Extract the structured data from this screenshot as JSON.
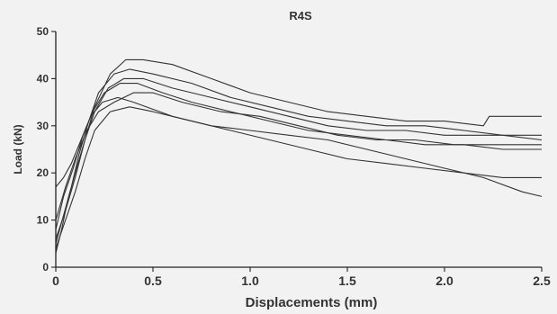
{
  "chart_data": {
    "type": "line",
    "title": "R4S",
    "xlabel": "Displacements (mm)",
    "ylabel": "Load (kN)",
    "xlim": [
      0,
      2.5
    ],
    "ylim": [
      0,
      50
    ],
    "xticks": [
      0,
      0.5,
      1.0,
      1.5,
      2.0,
      2.5
    ],
    "xtick_labels": [
      "0",
      "0.5",
      "1.0",
      "1.5",
      "2.0",
      "2.5"
    ],
    "yticks": [
      0,
      10,
      20,
      30,
      40,
      50
    ],
    "ytick_labels": [
      "0",
      "10",
      "20",
      "30",
      "40",
      "50"
    ],
    "grid": false,
    "series": [
      {
        "x": [
          0,
          0.03,
          0.06,
          0.1,
          0.15,
          0.2,
          0.28,
          0.36,
          0.45,
          0.6,
          0.8,
          1.0,
          1.2,
          1.4,
          1.6,
          1.8,
          2.0,
          2.2,
          2.23,
          2.5
        ],
        "y": [
          3,
          8,
          14,
          20,
          27,
          34,
          41,
          44,
          44,
          43,
          40,
          37,
          35,
          33,
          32,
          31,
          31,
          30,
          32,
          32
        ]
      },
      {
        "x": [
          0,
          0.04,
          0.08,
          0.12,
          0.17,
          0.22,
          0.3,
          0.38,
          0.5,
          0.7,
          0.9,
          1.1,
          1.3,
          1.5,
          1.7,
          1.9,
          2.1,
          2.3,
          2.5
        ],
        "y": [
          5,
          11,
          17,
          24,
          31,
          37,
          41,
          42,
          41,
          39,
          36,
          34,
          32,
          31,
          30,
          30,
          29,
          28,
          27
        ]
      },
      {
        "x": [
          0,
          0.05,
          0.1,
          0.15,
          0.2,
          0.27,
          0.35,
          0.45,
          0.6,
          0.8,
          1.0,
          1.2,
          1.4,
          1.6,
          1.8,
          2.0,
          2.2,
          2.4,
          2.5
        ],
        "y": [
          6,
          12,
          19,
          27,
          33,
          38,
          40,
          40,
          38,
          36,
          34,
          32,
          30,
          29,
          29,
          28,
          28,
          28,
          28
        ]
      },
      {
        "x": [
          0,
          0.04,
          0.09,
          0.14,
          0.19,
          0.25,
          0.33,
          0.42,
          0.55,
          0.7,
          0.9,
          1.1,
          1.3,
          1.5,
          1.7,
          1.9,
          2.1,
          2.3,
          2.5
        ],
        "y": [
          8,
          15,
          21,
          28,
          33,
          37,
          39,
          39,
          37,
          35,
          33,
          31,
          29,
          28,
          27,
          26,
          26,
          25,
          25
        ]
      },
      {
        "x": [
          0,
          0.05,
          0.1,
          0.16,
          0.22,
          0.3,
          0.4,
          0.5,
          0.65,
          0.85,
          1.05,
          1.25,
          1.45,
          1.65,
          1.85,
          2.05,
          2.25,
          2.5
        ],
        "y": [
          10,
          17,
          23,
          29,
          33,
          35,
          37,
          37,
          35,
          33,
          32,
          30,
          28,
          27,
          27,
          26,
          26,
          26
        ]
      },
      {
        "x": [
          0,
          0.05,
          0.1,
          0.15,
          0.2,
          0.28,
          0.38,
          0.5,
          0.7,
          0.9,
          1.1,
          1.3,
          1.5,
          1.7,
          1.9,
          2.1,
          2.3,
          2.5
        ],
        "y": [
          4,
          10,
          16,
          23,
          29,
          33,
          34,
          33,
          31,
          29,
          27,
          25,
          23,
          22,
          21,
          20,
          19,
          19
        ]
      },
      {
        "x": [
          0,
          0.04,
          0.08,
          0.13,
          0.18,
          0.24,
          0.32,
          0.4,
          0.6,
          0.8,
          1.0,
          1.2,
          1.4,
          1.6,
          1.8,
          2.0,
          2.2,
          2.4,
          2.5
        ],
        "y": [
          17,
          19,
          22,
          27,
          32,
          35,
          36,
          35,
          32,
          30,
          29,
          28,
          27,
          25,
          23,
          21,
          19,
          16,
          15
        ]
      }
    ]
  }
}
